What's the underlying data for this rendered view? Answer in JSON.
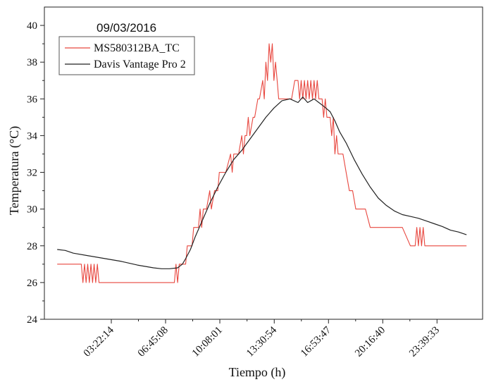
{
  "chart_data": {
    "type": "line",
    "title": "09/03/2016",
    "xlabel": "Tiempo (h)",
    "ylabel": "Temperatura (°C)",
    "ylim": [
      24,
      41
    ],
    "y_ticks": [
      24,
      26,
      28,
      30,
      32,
      34,
      36,
      38,
      40
    ],
    "x_ticks": [
      "03:22:14",
      "06:45:08",
      "10:08:01",
      "13:30:54",
      "16:53:47",
      "20:16:40",
      "23:39:33"
    ],
    "x_tick_hours": [
      3.37,
      6.75,
      10.13,
      13.52,
      16.9,
      20.28,
      23.66
    ],
    "xlim": [
      -0.8,
      26.5
    ],
    "grid": false,
    "legend_position": "top-left",
    "series": [
      {
        "name": "MS580312BA_TC",
        "color": "#e8473f",
        "x": [
          0,
          1.5,
          1.6,
          1.7,
          1.8,
          1.9,
          2.0,
          2.1,
          2.2,
          2.3,
          2.4,
          2.5,
          2.6,
          2.7,
          5.0,
          7.3,
          7.4,
          7.5,
          7.6,
          7.7,
          7.8,
          8.0,
          8.1,
          8.4,
          8.5,
          8.8,
          8.9,
          9.0,
          9.1,
          9.3,
          9.5,
          9.6,
          9.8,
          10.0,
          10.1,
          10.3,
          10.5,
          10.8,
          10.9,
          11.0,
          11.1,
          11.3,
          11.5,
          11.6,
          11.7,
          11.8,
          11.9,
          12.0,
          12.2,
          12.3,
          12.5,
          12.6,
          12.8,
          12.9,
          13.0,
          13.1,
          13.2,
          13.3,
          13.4,
          13.5,
          13.6,
          13.7,
          13.8,
          14.0,
          14.2,
          14.4,
          14.6,
          14.8,
          15.0,
          15.1,
          15.2,
          15.3,
          15.4,
          15.5,
          15.6,
          15.7,
          15.8,
          15.9,
          16.0,
          16.1,
          16.2,
          16.3,
          16.4,
          16.5,
          16.6,
          16.7,
          16.8,
          16.9,
          17.0,
          17.1,
          17.2,
          17.3,
          17.4,
          17.5,
          17.6,
          17.8,
          18.0,
          18.2,
          18.4,
          18.6,
          18.8,
          19.0,
          19.2,
          19.5,
          19.8,
          20.0,
          20.1,
          20.3,
          20.6,
          21.0,
          21.5,
          22.0,
          22.3,
          22.4,
          22.5,
          22.6,
          22.7,
          22.8,
          22.9,
          23.0,
          23.2,
          23.5,
          24.0,
          24.5,
          25.0,
          25.5
        ],
        "values": [
          27,
          27,
          26,
          27,
          26,
          27,
          26,
          27,
          26,
          27,
          26,
          27,
          26,
          26,
          26,
          26,
          27,
          26,
          27,
          27,
          27,
          27,
          28,
          28,
          29,
          29,
          30,
          29,
          30,
          30,
          31,
          30,
          31,
          31,
          32,
          32,
          32,
          33,
          32,
          33,
          33,
          33,
          34,
          33,
          34,
          34,
          35,
          34,
          35,
          35,
          36,
          36,
          37,
          36,
          38,
          37,
          39,
          38,
          39,
          37,
          38,
          37,
          36,
          36,
          36,
          36,
          36,
          37,
          37,
          36,
          37,
          36,
          37,
          36,
          37,
          36,
          37,
          36,
          37,
          36,
          37,
          36,
          36,
          36,
          35,
          36,
          35,
          35,
          35,
          34,
          35,
          33,
          34,
          33,
          33,
          33,
          32,
          31,
          31,
          30,
          30,
          30,
          30,
          29,
          29,
          29,
          29,
          29,
          29,
          29,
          29,
          28,
          28,
          29,
          28,
          29,
          28,
          29,
          28,
          28,
          28,
          28,
          28,
          28,
          28,
          28
        ]
      },
      {
        "name": "Davis Vantage Pro 2",
        "color": "#222222",
        "x": [
          0,
          0.5,
          1.0,
          2.0,
          3.0,
          4.0,
          5.0,
          6.0,
          6.5,
          7.0,
          7.5,
          7.8,
          8.0,
          8.3,
          8.6,
          9.0,
          9.5,
          10.0,
          10.5,
          11.0,
          11.5,
          12.0,
          12.5,
          13.0,
          13.5,
          14.0,
          14.5,
          15.0,
          15.3,
          15.6,
          16.0,
          16.3,
          16.6,
          17.0,
          17.3,
          17.6,
          18.0,
          18.5,
          19.0,
          19.5,
          20.0,
          20.5,
          21.0,
          21.5,
          22.0,
          22.5,
          23.0,
          23.5,
          24.0,
          24.5,
          25.0,
          25.5
        ],
        "values": [
          27.8,
          27.75,
          27.6,
          27.45,
          27.3,
          27.15,
          26.95,
          26.8,
          26.75,
          26.75,
          26.8,
          27.0,
          27.3,
          27.8,
          28.5,
          29.3,
          30.3,
          31.2,
          32.0,
          32.7,
          33.2,
          33.8,
          34.4,
          35.0,
          35.5,
          35.9,
          36.0,
          35.8,
          36.1,
          35.8,
          36.0,
          35.8,
          35.6,
          35.3,
          34.8,
          34.2,
          33.6,
          32.7,
          31.9,
          31.2,
          30.6,
          30.2,
          29.9,
          29.7,
          29.6,
          29.5,
          29.35,
          29.2,
          29.05,
          28.85,
          28.75,
          28.6
        ]
      }
    ]
  }
}
